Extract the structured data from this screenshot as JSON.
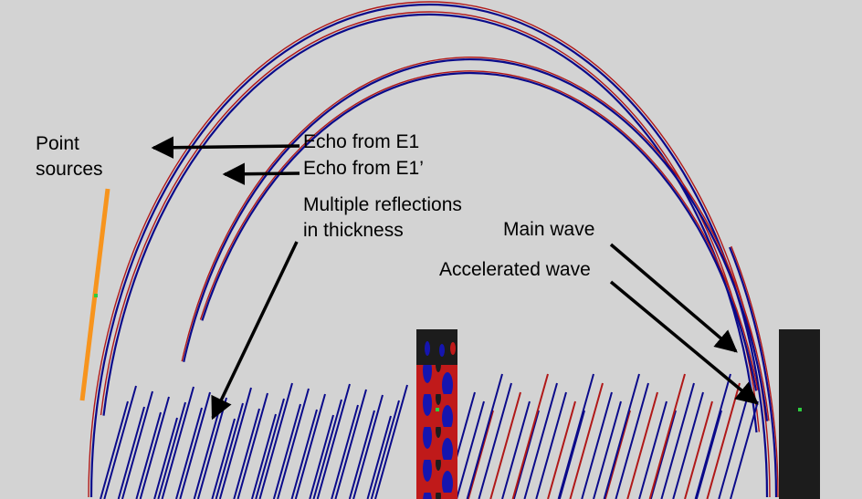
{
  "labels": {
    "point_sources": [
      "Point",
      "sources"
    ],
    "echo_e1": "Echo from E1",
    "echo_e1_prime": "Echo from E1’",
    "multiple_reflections": [
      "Multiple reflections",
      "in thickness"
    ],
    "main_wave": "Main wave",
    "accelerated_wave": "Accelerated wave"
  },
  "colors": {
    "background": "#d3d3d3",
    "wave_positive": "#b01818",
    "wave_negative": "#0a0a8a",
    "source_line": "#f7941d",
    "source_marker": "#2ecc40",
    "panel": "#1c1c1c",
    "arrow": "#000000"
  }
}
